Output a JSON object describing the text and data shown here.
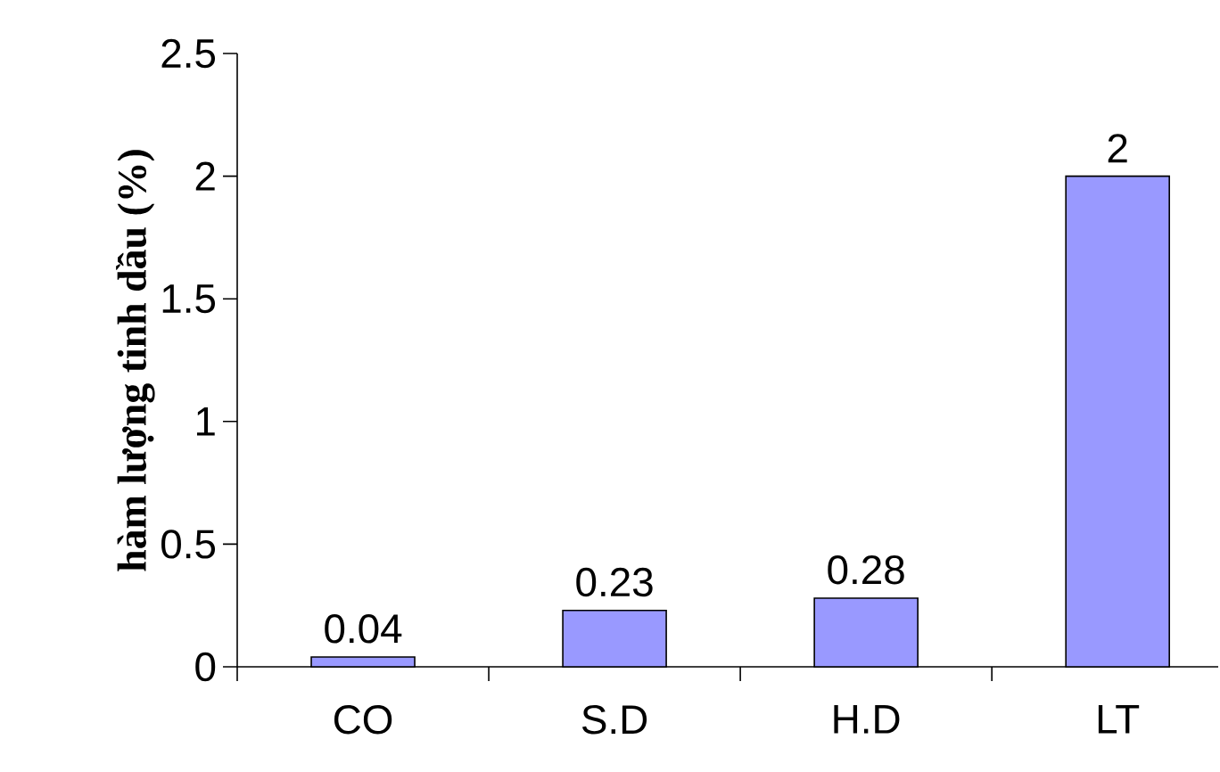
{
  "chart_data": {
    "type": "bar",
    "ylabel": "hàm lượng tinh dầu (%)",
    "categories": [
      "CO",
      "S.D",
      "H.D",
      "LT"
    ],
    "values": [
      0.04,
      0.23,
      0.28,
      2
    ],
    "color": "#9999ff",
    "ylim": [
      0,
      2.5
    ],
    "yticks": [
      0,
      0.5,
      1,
      1.5,
      2,
      2.5
    ],
    "data_labels": true,
    "grid": false
  }
}
